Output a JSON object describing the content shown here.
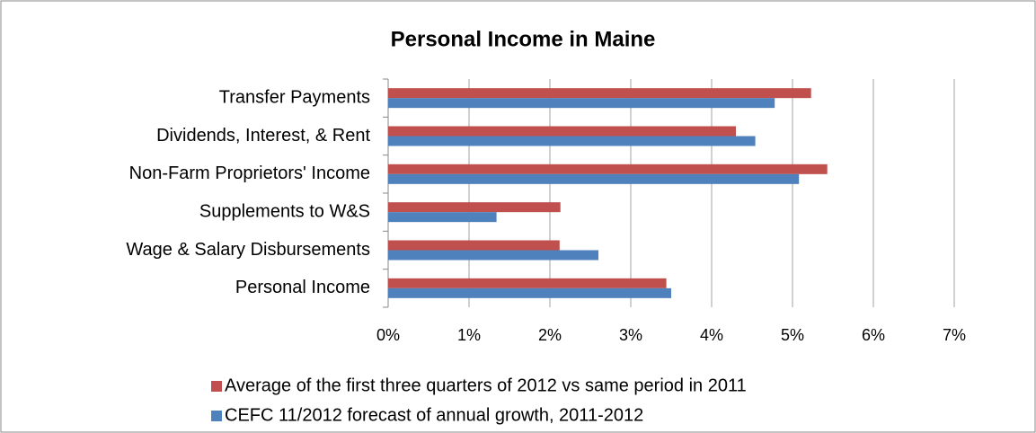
{
  "chart_data": {
    "type": "bar",
    "orientation": "horizontal",
    "title": "Personal Income in Maine",
    "categories": [
      "Transfer Payments",
      "Dividends, Interest, & Rent",
      "Non-Farm Proprietors' Income",
      "Supplements to W&S",
      "Wage & Salary Disbursements",
      "Personal Income"
    ],
    "series": [
      {
        "name": "Average of the first three quarters of 2012 vs same period in 2011",
        "color": "#c0504d",
        "values": [
          5.23,
          4.3,
          5.43,
          2.13,
          2.12,
          3.44
        ]
      },
      {
        "name": "CEFC 11/2012 forecast of annual growth, 2011-2012",
        "color": "#4f81bd",
        "values": [
          4.78,
          4.54,
          5.08,
          1.34,
          2.6,
          3.5
        ]
      }
    ],
    "xlim": [
      0,
      7
    ],
    "xticks": [
      {
        "value": 0,
        "label": "0%"
      },
      {
        "value": 1,
        "label": "1%"
      },
      {
        "value": 2,
        "label": "2%"
      },
      {
        "value": 3,
        "label": "3%"
      },
      {
        "value": 4,
        "label": "4%"
      },
      {
        "value": 5,
        "label": "5%"
      },
      {
        "value": 6,
        "label": "6%"
      },
      {
        "value": 7,
        "label": "7%"
      }
    ],
    "grid": true,
    "legend": "bottom"
  }
}
